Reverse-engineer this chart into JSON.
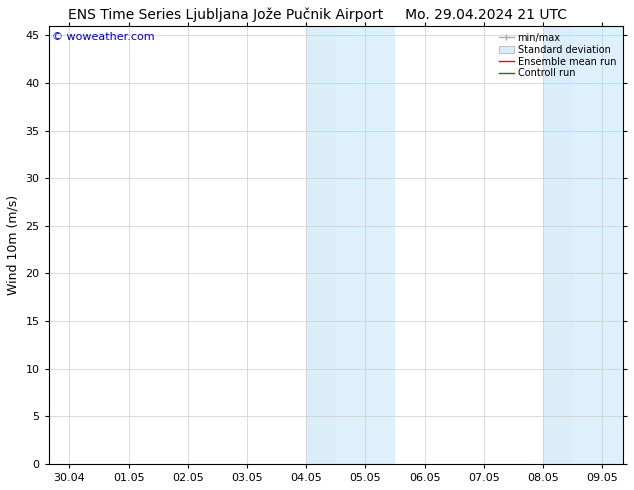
{
  "title": "ENS Time Series Ljubljana Jože Pučnik Airport",
  "title_right": "Mo. 29.04.2024 21 UTC",
  "ylabel": "Wind 10m (m/s)",
  "watermark": "© woweather.com",
  "watermark_color": "#0000cc",
  "ylim": [
    0,
    46
  ],
  "yticks": [
    0,
    5,
    10,
    15,
    20,
    25,
    30,
    35,
    40,
    45
  ],
  "xtick_labels": [
    "30.04",
    "01.05",
    "02.05",
    "03.05",
    "04.05",
    "05.05",
    "06.05",
    "07.05",
    "08.05",
    "09.05"
  ],
  "shade_bands": [
    {
      "start_day": 4,
      "end_day": 4.5,
      "color": "#daedf8"
    },
    {
      "start_day": 4.5,
      "end_day": 5.5,
      "color": "#ddf0fb"
    },
    {
      "start_day": 8.0,
      "end_day": 8.5,
      "color": "#daedf8"
    },
    {
      "start_day": 8.5,
      "end_day": 9.5,
      "color": "#ddf0fb"
    }
  ],
  "legend_labels": [
    "min/max",
    "Standard deviation",
    "Ensemble mean run",
    "Controll run"
  ],
  "legend_colors": [
    "#aaaaaa",
    "#cccccc",
    "#ff0000",
    "#008000"
  ],
  "bg_color": "#ffffff",
  "plot_bg_color": "#ffffff",
  "grid_color": "#cccccc",
  "tick_label_fontsize": 8,
  "axis_label_fontsize": 9,
  "title_fontsize": 10
}
